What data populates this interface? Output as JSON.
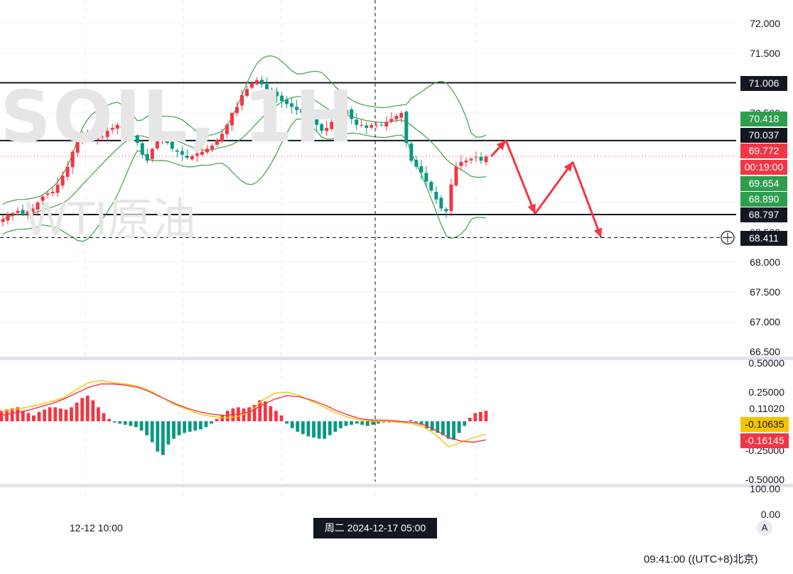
{
  "watermark": {
    "symbol": "SOIL, 1H",
    "name": "WTI原油"
  },
  "price_scale": {
    "ticks": [
      "72.000",
      "71.500",
      "70.500",
      "68.500",
      "68.000",
      "67.500",
      "67.000",
      "66.500"
    ],
    "tags": [
      {
        "label": "71.006",
        "bg": "#131722"
      },
      {
        "label": "70.418",
        "bg": "#2e9e4e"
      },
      {
        "label": "70.037",
        "bg": "#131722"
      },
      {
        "label": "69.772",
        "bg": "#f23645"
      },
      {
        "label": "00:19:00",
        "bg": "#f23645"
      },
      {
        "label": "69.654",
        "bg": "#2e9e4e"
      },
      {
        "label": "68.890",
        "bg": "#2e9e4e"
      },
      {
        "label": "68.797",
        "bg": "#131722"
      },
      {
        "label": "68.411",
        "bg": "#131722"
      }
    ]
  },
  "macd_scale": {
    "ticks": [
      "0.50000",
      "0.25000",
      "0.11020",
      "-0.25000",
      "-0.50000"
    ],
    "tags": [
      {
        "label": "-0.10635",
        "bg": "#f5c400",
        "fg": "#131722"
      },
      {
        "label": "-0.16145",
        "bg": "#f23645",
        "fg": "#ffffff"
      }
    ]
  },
  "rsi_scale": {
    "ticks": [
      "100.00",
      "0.00"
    ]
  },
  "time_axis": {
    "labels": [
      "12-12 10:00"
    ],
    "crosshair_label": "周二 2024-12-17  05:00"
  },
  "footer": {
    "clock": "09:41:00 ((UTC+8)北京)",
    "auto_scale_label": "A"
  },
  "colors": {
    "up": "#f23645",
    "down": "#089981",
    "bollinger": "#43a047",
    "macd_line": "#f5c400",
    "signal_line": "#f23645",
    "projection": "#f23645",
    "level_line": "#131722"
  },
  "chart_data": [
    {
      "type": "candlestick",
      "title": "SOIL, 1H",
      "subtitle": "WTI原油",
      "ylim": [
        66.5,
        72.0
      ],
      "last_price": 69.772,
      "horizontal_levels": [
        71.006,
        70.037,
        68.797
      ],
      "crosshair_price": 68.411,
      "bollinger": {
        "upper_last": 70.418,
        "middle_last": 69.654,
        "lower_last": 68.89
      },
      "price_path": [
        68.72,
        68.8,
        68.82,
        68.86,
        68.8,
        68.85,
        68.9,
        69.0,
        69.1,
        69.15,
        69.18,
        69.3,
        69.45,
        69.6,
        69.85,
        70.05,
        70.12,
        70.06,
        70.08,
        70.08,
        70.1,
        70.2,
        70.25,
        70.3,
        70.25,
        70.2,
        70.12,
        70.0,
        69.8,
        69.7,
        69.9,
        70.05,
        70.1,
        70.0,
        69.9,
        69.85,
        69.8,
        69.75,
        69.78,
        69.82,
        69.85,
        69.9,
        69.95,
        70.05,
        70.15,
        70.3,
        70.5,
        70.6,
        70.8,
        70.9,
        71.0,
        71.05,
        70.98,
        70.9,
        70.85,
        70.78,
        70.7,
        70.65,
        70.6,
        70.55,
        70.5,
        70.45,
        70.42,
        70.3,
        70.2,
        70.25,
        70.35,
        70.45,
        70.5,
        70.55,
        70.4,
        70.3,
        70.3,
        70.25,
        70.3,
        70.3,
        70.3,
        70.35,
        70.4,
        70.45,
        70.5,
        70.0,
        69.7,
        69.6,
        69.5,
        69.35,
        69.2,
        69.05,
        68.9,
        68.85,
        69.3,
        69.6,
        69.68,
        69.7,
        69.73,
        69.76,
        69.7,
        69.77
      ],
      "projection_path": [
        69.77,
        70.04,
        68.81,
        69.68,
        68.41
      ]
    },
    {
      "type": "macd",
      "ylim": [
        -0.5,
        0.5
      ],
      "macd_last": -0.10635,
      "signal_last": -0.16145,
      "histogram": [
        0.09,
        0.1,
        0.11,
        0.12,
        0.09,
        0.07,
        0.05,
        0.08,
        0.1,
        0.12,
        0.12,
        0.11,
        0.1,
        0.12,
        0.16,
        0.2,
        0.22,
        0.18,
        0.12,
        0.07,
        0.02,
        -0.01,
        -0.02,
        -0.03,
        -0.04,
        -0.05,
        -0.08,
        -0.12,
        -0.18,
        -0.26,
        -0.29,
        -0.2,
        -0.15,
        -0.12,
        -0.1,
        -0.09,
        -0.08,
        -0.07,
        -0.05,
        -0.02,
        0.02,
        0.05,
        0.09,
        0.11,
        0.12,
        0.11,
        0.12,
        0.14,
        0.18,
        0.17,
        0.13,
        0.09,
        0.05,
        -0.02,
        -0.06,
        -0.09,
        -0.11,
        -0.13,
        -0.14,
        -0.15,
        -0.15,
        -0.12,
        -0.09,
        -0.06,
        -0.04,
        -0.03,
        -0.02,
        -0.03,
        -0.04,
        -0.03,
        -0.02,
        -0.01,
        -0.01,
        0.0,
        0.0,
        -0.01,
        0.01,
        -0.01,
        -0.03,
        -0.06,
        -0.08,
        -0.1,
        -0.12,
        -0.15,
        -0.16,
        -0.1,
        -0.04,
        0.03,
        0.07,
        0.08,
        0.09
      ],
      "macd_line": [
        0.08,
        0.1,
        0.12,
        0.14,
        0.17,
        0.2,
        0.27,
        0.33,
        0.35,
        0.33,
        0.32,
        0.3,
        0.26,
        0.2,
        0.14,
        0.1,
        0.06,
        0.04,
        0.03,
        0.04,
        0.08,
        0.18,
        0.24,
        0.25,
        0.22,
        0.17,
        0.12,
        0.07,
        0.03,
        0.01,
        0.0,
        0.0,
        -0.01,
        -0.02,
        -0.05,
        -0.12,
        -0.22,
        -0.18,
        -0.14,
        -0.11
      ],
      "signal_line": [
        0.05,
        0.07,
        0.09,
        0.12,
        0.15,
        0.19,
        0.24,
        0.29,
        0.32,
        0.32,
        0.31,
        0.29,
        0.25,
        0.2,
        0.15,
        0.11,
        0.08,
        0.06,
        0.05,
        0.06,
        0.08,
        0.14,
        0.19,
        0.22,
        0.21,
        0.18,
        0.14,
        0.09,
        0.05,
        0.02,
        0.01,
        0.01,
        0.0,
        -0.01,
        -0.03,
        -0.08,
        -0.14,
        -0.17,
        -0.18,
        -0.16
      ]
    }
  ]
}
